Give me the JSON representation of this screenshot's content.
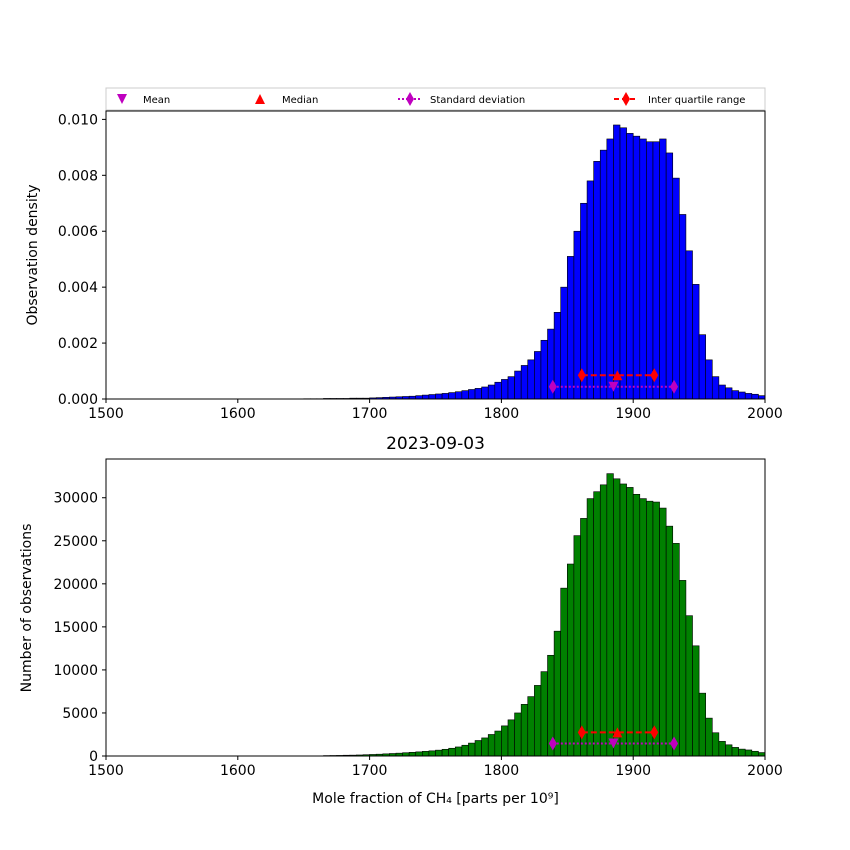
{
  "figure_title": "2023-09-03",
  "legend": {
    "placement": "top",
    "items": [
      {
        "label": "Mean",
        "marker": "triangle-down",
        "color": "#bf00bf"
      },
      {
        "label": "Median",
        "marker": "triangle-up",
        "color": "#ff0000"
      },
      {
        "label": "Standard deviation",
        "marker": "diamond",
        "color": "#bf00bf",
        "line": "dotted"
      },
      {
        "label": "Inter quartile range",
        "marker": "diamond",
        "color": "#ff0000",
        "line": "dashed"
      }
    ]
  },
  "chart_data": [
    {
      "type": "bar",
      "name": "density-histogram",
      "bar_color": "#0000ff",
      "ylabel": "Observation density",
      "xlabel": "",
      "xlim": [
        1500,
        2000
      ],
      "ylim": [
        0,
        0.0103
      ],
      "xticks": [
        "1500",
        "1600",
        "1700",
        "1800",
        "1900",
        "2000"
      ],
      "yticks": [
        {
          "v": 0,
          "label": "0.000"
        },
        {
          "v": 0.002,
          "label": "0.002"
        },
        {
          "v": 0.004,
          "label": "0.004"
        },
        {
          "v": 0.006,
          "label": "0.006"
        },
        {
          "v": 0.008,
          "label": "0.008"
        },
        {
          "v": 0.01,
          "label": "0.010"
        }
      ],
      "bin_width": 5,
      "bin_starts": [
        1650,
        1655,
        1660,
        1665,
        1670,
        1675,
        1680,
        1685,
        1690,
        1695,
        1700,
        1705,
        1710,
        1715,
        1720,
        1725,
        1730,
        1735,
        1740,
        1745,
        1750,
        1755,
        1760,
        1765,
        1770,
        1775,
        1780,
        1785,
        1790,
        1795,
        1800,
        1805,
        1810,
        1815,
        1820,
        1825,
        1830,
        1835,
        1840,
        1845,
        1850,
        1855,
        1860,
        1865,
        1870,
        1875,
        1880,
        1885,
        1890,
        1895,
        1900,
        1905,
        1910,
        1915,
        1920,
        1925,
        1930,
        1935,
        1940,
        1945,
        1950,
        1955,
        1960,
        1965,
        1970,
        1975,
        1980,
        1985,
        1990,
        1995
      ],
      "values": [
        1e-05,
        1e-05,
        1e-05,
        2e-05,
        2e-05,
        2e-05,
        2e-05,
        3e-05,
        3e-05,
        3e-05,
        4e-05,
        5e-05,
        6e-05,
        7e-05,
        8e-05,
        9e-05,
        0.0001,
        0.00012,
        0.00014,
        0.00016,
        0.00018,
        0.0002,
        0.00023,
        0.00026,
        0.0003,
        0.00034,
        0.00038,
        0.00043,
        0.0005,
        0.0006,
        0.0007,
        0.0008,
        0.001,
        0.0012,
        0.0014,
        0.0017,
        0.0021,
        0.0025,
        0.0031,
        0.004,
        0.0051,
        0.006,
        0.007,
        0.0078,
        0.0085,
        0.0089,
        0.0093,
        0.0098,
        0.0097,
        0.0095,
        0.0094,
        0.0093,
        0.0092,
        0.0092,
        0.0093,
        0.0088,
        0.0079,
        0.0066,
        0.0053,
        0.0041,
        0.0023,
        0.0014,
        0.0008,
        0.0005,
        0.0004,
        0.0003,
        0.00025,
        0.0002,
        0.00017,
        0.00012
      ],
      "stats": {
        "mean": 1885,
        "median": 1888,
        "std_low": 1839,
        "std_high": 1931,
        "iqr_low": 1861,
        "iqr_high": 1916,
        "std_y": 0.00044,
        "iqr_y": 0.00085,
        "mean_y": 0.00044,
        "median_y": 0.00085
      }
    },
    {
      "type": "bar",
      "name": "count-histogram",
      "bar_color": "#008000",
      "ylabel": "Number of observations",
      "xlabel": "Mole fraction of CH₄ [parts per 10⁹]",
      "xlim": [
        1500,
        2000
      ],
      "ylim": [
        0,
        34500
      ],
      "xticks": [
        "1500",
        "1600",
        "1700",
        "1800",
        "1900",
        "2000"
      ],
      "yticks": [
        {
          "v": 0,
          "label": "0"
        },
        {
          "v": 5000,
          "label": "5000"
        },
        {
          "v": 10000,
          "label": "10000"
        },
        {
          "v": 15000,
          "label": "15000"
        },
        {
          "v": 20000,
          "label": "20000"
        },
        {
          "v": 25000,
          "label": "25000"
        },
        {
          "v": 30000,
          "label": "30000"
        }
      ],
      "bin_width": 5,
      "bin_starts": [
        1665,
        1670,
        1675,
        1680,
        1685,
        1690,
        1695,
        1700,
        1705,
        1710,
        1715,
        1720,
        1725,
        1730,
        1735,
        1740,
        1745,
        1750,
        1755,
        1760,
        1765,
        1770,
        1775,
        1780,
        1785,
        1790,
        1795,
        1800,
        1805,
        1810,
        1815,
        1820,
        1825,
        1830,
        1835,
        1840,
        1845,
        1850,
        1855,
        1860,
        1865,
        1870,
        1875,
        1880,
        1885,
        1890,
        1895,
        1900,
        1905,
        1910,
        1915,
        1920,
        1925,
        1930,
        1935,
        1940,
        1945,
        1950,
        1955,
        1960,
        1965,
        1970,
        1975,
        1980,
        1985,
        1990,
        1995
      ],
      "values": [
        50,
        60,
        70,
        90,
        100,
        120,
        150,
        180,
        210,
        250,
        290,
        330,
        380,
        430,
        480,
        540,
        600,
        680,
        780,
        900,
        1050,
        1250,
        1500,
        1800,
        2100,
        2500,
        2900,
        3500,
        4200,
        5000,
        6000,
        6900,
        8200,
        9800,
        11700,
        14500,
        19500,
        22300,
        25600,
        27600,
        29900,
        30700,
        31500,
        32800,
        32200,
        31600,
        31200,
        30400,
        29900,
        29600,
        29500,
        28800,
        26700,
        24700,
        20400,
        16300,
        12800,
        7300,
        4400,
        2700,
        1700,
        1300,
        1000,
        800,
        700,
        550,
        400
      ],
      "stats": {
        "mean": 1885,
        "median": 1888,
        "std_low": 1839,
        "std_high": 1931,
        "iqr_low": 1861,
        "iqr_high": 1916,
        "std_y": 1450,
        "iqr_y": 2750,
        "mean_y": 1450,
        "median_y": 2750
      }
    }
  ]
}
